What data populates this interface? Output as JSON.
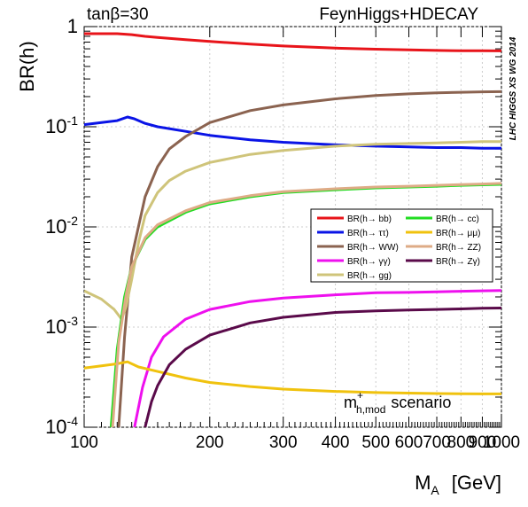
{
  "chart_data": {
    "type": "line",
    "title_left": "tanβ=30",
    "title_right": "FeynHiggs+HDECAY",
    "ylabel": "BR(h)",
    "xlabel": "M_A  [GeV]",
    "xlabel_main": "M",
    "xlabel_sub": "A",
    "xlabel_unit": "[GeV]",
    "watermark": "LHC HIGGS XS WG 2014",
    "scenario": {
      "base": "m",
      "sup": "+",
      "sub": "h,mod",
      "suffix": "scenario"
    },
    "xlim": [
      100,
      1000
    ],
    "ylim": [
      0.0001,
      1
    ],
    "yscale": "log",
    "x_ticks": [
      100,
      200,
      300,
      400,
      500,
      600,
      700,
      800,
      900,
      1000
    ],
    "x_tick_labels": [
      "100",
      "200",
      "300",
      "400",
      "500",
      "600",
      "700",
      "800",
      "900",
      "1000"
    ],
    "y_tick_labels": [
      {
        "value": 1,
        "base": "1",
        "exp": ""
      },
      {
        "value": 0.1,
        "base": "10",
        "exp": "-1"
      },
      {
        "value": 0.01,
        "base": "10",
        "exp": "-2"
      },
      {
        "value": 0.001,
        "base": "10",
        "exp": "-3"
      },
      {
        "value": 0.0001,
        "base": "10",
        "exp": "-4"
      }
    ],
    "legend_position": "center-right",
    "series": [
      {
        "name": "BR(h→ bb)",
        "color": "#e8141a",
        "x": [
          100,
          110,
          120,
          130,
          140,
          150,
          175,
          200,
          250,
          300,
          400,
          500,
          600,
          700,
          800,
          900,
          1000
        ],
        "y": [
          0.85,
          0.85,
          0.85,
          0.83,
          0.8,
          0.78,
          0.74,
          0.71,
          0.67,
          0.64,
          0.61,
          0.595,
          0.585,
          0.578,
          0.575,
          0.573,
          0.572
        ]
      },
      {
        "name": "BR(h→ ττ)",
        "color": "#0a14e6",
        "x": [
          100,
          110,
          120,
          127,
          132,
          140,
          150,
          175,
          200,
          250,
          300,
          400,
          500,
          600,
          700,
          800,
          900,
          1000
        ],
        "y": [
          0.105,
          0.11,
          0.115,
          0.125,
          0.12,
          0.108,
          0.1,
          0.09,
          0.082,
          0.074,
          0.07,
          0.066,
          0.064,
          0.063,
          0.062,
          0.062,
          0.061,
          0.061
        ]
      },
      {
        "name": "BR(h→ WW)",
        "color": "#8b6350",
        "x": [
          121,
          125,
          130,
          140,
          150,
          160,
          175,
          200,
          250,
          300,
          400,
          500,
          600,
          700,
          800,
          900,
          1000
        ],
        "y": [
          0.0001,
          0.0008,
          0.005,
          0.02,
          0.04,
          0.06,
          0.08,
          0.11,
          0.145,
          0.165,
          0.19,
          0.205,
          0.213,
          0.218,
          0.221,
          0.223,
          0.224
        ]
      },
      {
        "name": "BR(h→ γγ)",
        "color": "#ee10ee",
        "x": [
          132,
          138,
          145,
          155,
          175,
          200,
          250,
          300,
          400,
          500,
          600,
          700,
          800,
          900,
          1000
        ],
        "y": [
          0.0001,
          0.00025,
          0.0005,
          0.0008,
          0.0012,
          0.0015,
          0.0018,
          0.00195,
          0.0021,
          0.0022,
          0.00222,
          0.00225,
          0.00228,
          0.0023,
          0.00232
        ]
      },
      {
        "name": "BR(h→ gg)",
        "color": "#cfc47a",
        "x": [
          100,
          110,
          118,
          123,
          126,
          130,
          135,
          140,
          150,
          160,
          175,
          200,
          250,
          300,
          400,
          500,
          600,
          700,
          800,
          900,
          1000
        ],
        "y": [
          0.0023,
          0.0019,
          0.0015,
          0.0012,
          0.0016,
          0.003,
          0.007,
          0.013,
          0.022,
          0.029,
          0.036,
          0.044,
          0.053,
          0.058,
          0.064,
          0.067,
          0.068,
          0.069,
          0.07,
          0.071,
          0.071
        ]
      },
      {
        "name": "BR(h→ cc)",
        "color": "#22dd22",
        "x": [
          116,
          120,
          125,
          130,
          140,
          150,
          175,
          200,
          250,
          300,
          400,
          500,
          600,
          700,
          800,
          900,
          1000
        ],
        "y": [
          0.0001,
          0.0006,
          0.002,
          0.004,
          0.0075,
          0.01,
          0.014,
          0.017,
          0.02,
          0.022,
          0.0235,
          0.0245,
          0.025,
          0.0255,
          0.026,
          0.0263,
          0.0266
        ]
      },
      {
        "name": "BR(h→ μμ)",
        "color": "#f0c20e",
        "x": [
          100,
          110,
          120,
          127,
          135,
          150,
          175,
          200,
          250,
          300,
          400,
          500,
          600,
          700,
          800,
          900,
          1000
        ],
        "y": [
          0.00039,
          0.00041,
          0.00043,
          0.00045,
          0.0004,
          0.00036,
          0.00031,
          0.00028,
          0.000255,
          0.00024,
          0.000228,
          0.000222,
          0.000219,
          0.000217,
          0.000216,
          0.000215,
          0.000215
        ]
      },
      {
        "name": "BR(h→ ZZ)",
        "color": "#deab86",
        "x": [
          117,
          121,
          126,
          130,
          140,
          150,
          175,
          200,
          250,
          300,
          400,
          500,
          600,
          700,
          800,
          900,
          1000
        ],
        "y": [
          0.0001,
          0.0007,
          0.0021,
          0.004,
          0.0078,
          0.0105,
          0.0145,
          0.0175,
          0.0205,
          0.0225,
          0.024,
          0.025,
          0.0255,
          0.026,
          0.0265,
          0.0268,
          0.0272
        ]
      },
      {
        "name": "BR(h→ Zγ)",
        "color": "#5a0a4a",
        "x": [
          140,
          145,
          150,
          160,
          175,
          200,
          250,
          300,
          400,
          500,
          600,
          700,
          800,
          900,
          1000
        ],
        "y": [
          0.0001,
          0.00018,
          0.00026,
          0.00042,
          0.0006,
          0.00083,
          0.0011,
          0.00125,
          0.0014,
          0.00145,
          0.00148,
          0.0015,
          0.00152,
          0.00154,
          0.00155
        ]
      }
    ]
  }
}
